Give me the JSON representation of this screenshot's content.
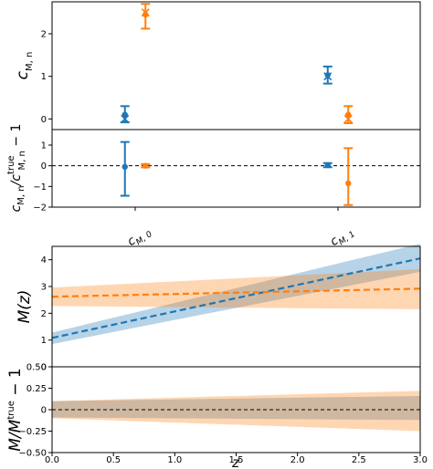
{
  "colors": {
    "blue": "#1f77b4",
    "orange": "#ff7f0e",
    "frame": "#000000"
  },
  "chart_data": [
    {
      "type": "scatter",
      "panel": "coefficients",
      "categories": [
        "c_{M,0}",
        "c_{M,1}"
      ],
      "category_labels": [
        {
          "base": "c",
          "sub": "M, 0"
        },
        {
          "base": "c",
          "sub": "M, 1"
        }
      ],
      "ylabel_parts": {
        "base": "c",
        "sub": "M, n"
      },
      "ylim": [
        -0.25,
        2.75
      ],
      "yticks": [
        "0",
        "1",
        "2"
      ],
      "series": [
        {
          "color": "blue",
          "truth": [
            0.0,
            1.0
          ],
          "values": [
            0.1,
            1.03
          ],
          "err_low": [
            0.18,
            0.2
          ],
          "err_high": [
            0.2,
            0.2
          ],
          "offset": -0.09
        },
        {
          "color": "orange",
          "truth": [
            2.5,
            0.0
          ],
          "values": [
            2.45,
            0.1
          ],
          "err_low": [
            0.33,
            0.2
          ],
          "err_high": [
            0.25,
            0.2
          ],
          "offset": 0.09
        }
      ]
    },
    {
      "type": "scatter",
      "panel": "coefficient-residuals",
      "categories": [
        "c_{M,0}",
        "c_{M,1}"
      ],
      "ylabel_parts": {
        "base": "c",
        "sub1": "M, n",
        "frac": "/c",
        "sup": "true",
        "sub2": "M, n",
        "tail": " − 1"
      },
      "ylim": [
        -2.0,
        1.75
      ],
      "yticks": [
        "−2",
        "−1",
        "0",
        "1"
      ],
      "reference_line": 0,
      "series": [
        {
          "color": "blue",
          "values": [
            -0.05,
            0.03
          ],
          "err_low": [
            1.4,
            0.1
          ],
          "err_high": [
            1.2,
            0.1
          ],
          "offset": -0.09
        },
        {
          "color": "orange",
          "values": [
            0.0,
            -0.85
          ],
          "err_low": [
            0.08,
            1.05
          ],
          "err_high": [
            0.08,
            1.7
          ],
          "offset": 0.09
        }
      ]
    },
    {
      "type": "line",
      "panel": "M-of-z",
      "xlim": [
        0.0,
        3.0
      ],
      "ylim": [
        0.0,
        4.5
      ],
      "yticks": [
        "0",
        "1",
        "2",
        "3",
        "4"
      ],
      "ylabel": "M(z)",
      "series": [
        {
          "color": "blue",
          "x": [
            0.0,
            3.0
          ],
          "y": [
            1.08,
            4.05
          ],
          "band_low": [
            0.85,
            3.55
          ],
          "band_high": [
            1.28,
            4.6
          ]
        },
        {
          "color": "orange",
          "x": [
            0.0,
            3.0
          ],
          "y": [
            2.62,
            2.92
          ],
          "band_low": [
            2.27,
            2.15
          ],
          "band_high": [
            2.96,
            3.65
          ]
        }
      ]
    },
    {
      "type": "area",
      "panel": "M-residuals",
      "xlim": [
        0.0,
        3.0
      ],
      "ylim": [
        -0.5,
        0.5
      ],
      "xticks": [
        "0.0",
        "0.5",
        "1.0",
        "1.5",
        "2.0",
        "2.5",
        "3.0"
      ],
      "yticks": [
        "−0.50",
        "−0.25",
        "0",
        "0.25",
        "0.50"
      ],
      "xlabel": "z",
      "ylabel_parts": {
        "base": "M/M",
        "sup": "true",
        "tail": " − 1"
      },
      "reference_line": 0,
      "series": [
        {
          "color": "blue",
          "x": [
            0.0,
            3.0
          ],
          "band_low": [
            -0.09,
            -0.12
          ],
          "band_high": [
            0.1,
            0.16
          ]
        },
        {
          "color": "orange",
          "x": [
            0.0,
            3.0
          ],
          "band_low": [
            -0.1,
            -0.25
          ],
          "band_high": [
            0.1,
            0.22
          ]
        }
      ]
    }
  ]
}
